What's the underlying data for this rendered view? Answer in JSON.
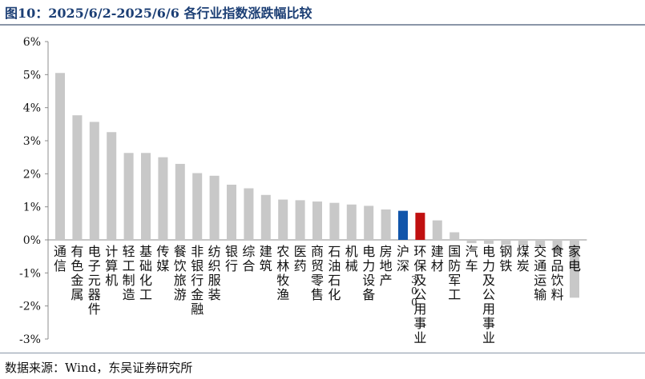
{
  "header": {
    "title": "图10：2025/6/2-2025/6/6 各行业指数涨跌幅比较"
  },
  "footer": {
    "source": "数据来源：Wind，东吴证券研究所"
  },
  "colors": {
    "default_bar": "#c8c8c8",
    "hs300": "#1155aa",
    "eco": "#c01010",
    "axis": "#8c8c8c"
  },
  "chart_data": {
    "type": "bar",
    "title": "",
    "xlabel": "",
    "ylabel": "",
    "ylim": [
      -3,
      6
    ],
    "yticks": [
      "6%",
      "5%",
      "4%",
      "3%",
      "2%",
      "1%",
      "0%",
      "-1%",
      "-2%",
      "-3%"
    ],
    "grid": false,
    "legend": "none",
    "categories": [
      "通信",
      "有色金属",
      "电子元器件",
      "计算机",
      "轻工制造",
      "基础化工",
      "传媒",
      "餐饮旅游",
      "非银行金融",
      "纺织服装",
      "银行",
      "综合",
      "建筑",
      "农林牧渔",
      "医药",
      "商贸零售",
      "石油石化",
      "机械",
      "电力设备",
      "房地产",
      "沪深300",
      "环保及公用事业",
      "建材",
      "国防军工",
      "汽车",
      "电力及公用事业",
      "钢铁",
      "煤炭",
      "交通运输",
      "食品饮料",
      "家电"
    ],
    "values": [
      5.05,
      3.77,
      3.57,
      3.26,
      2.63,
      2.63,
      2.5,
      2.3,
      2.02,
      1.94,
      1.67,
      1.56,
      1.36,
      1.22,
      1.2,
      1.16,
      1.12,
      1.07,
      1.03,
      0.92,
      0.88,
      0.82,
      0.59,
      0.23,
      -0.1,
      -0.12,
      -0.15,
      -0.18,
      -0.2,
      -0.35,
      -1.75
    ]
  }
}
